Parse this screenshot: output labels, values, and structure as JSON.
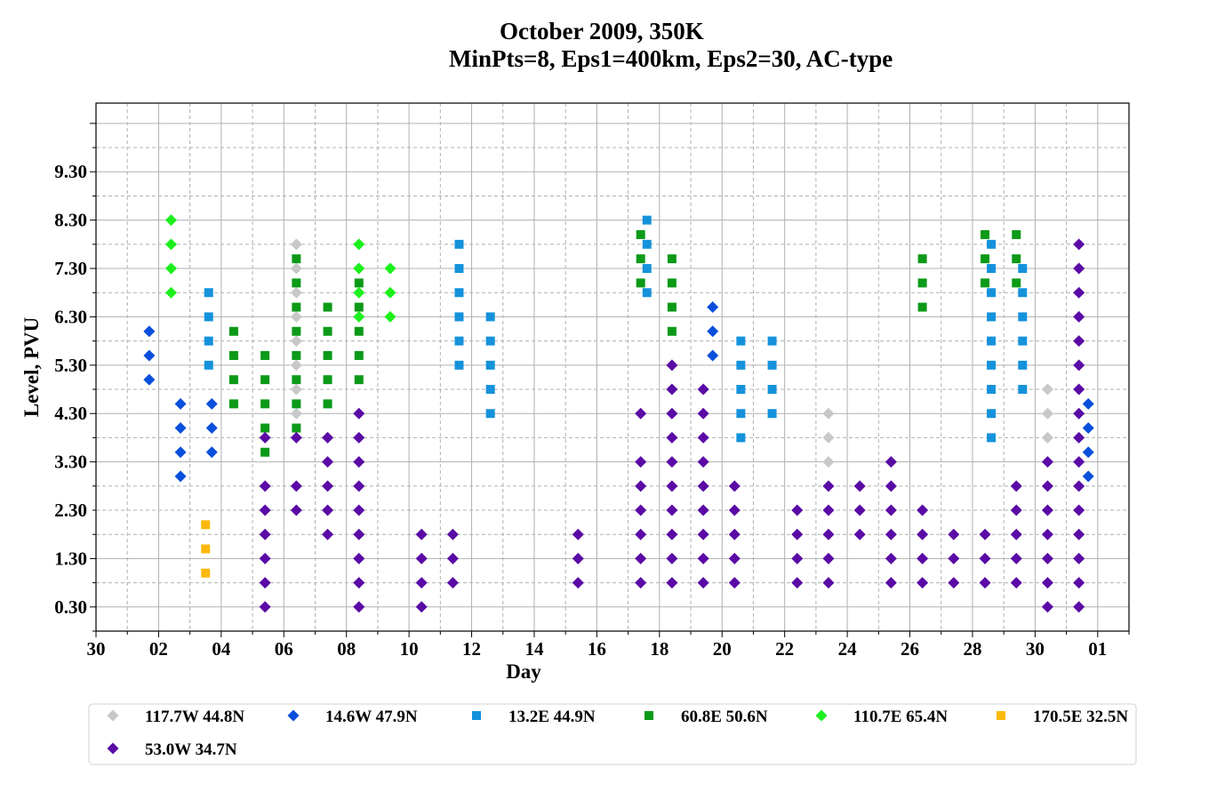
{
  "chart_data": {
    "type": "scatter",
    "title": "October 2009, 350K",
    "subtitle": "MinPts=8, Eps1=400km, Eps2=30, AC-type",
    "xlabel": "Day",
    "ylabel": "Level, PVU",
    "xlim_days_from_sep30": [
      0,
      33
    ],
    "ylim": [
      -0.2,
      10.72
    ],
    "x_ticks": [
      "30",
      "02",
      "04",
      "06",
      "08",
      "10",
      "12",
      "14",
      "16",
      "18",
      "20",
      "22",
      "24",
      "26",
      "28",
      "30",
      "01"
    ],
    "y_ticks": [
      "0.30",
      "1.30",
      "2.30",
      "3.30",
      "4.30",
      "5.30",
      "6.30",
      "7.30",
      "8.30",
      "9.30"
    ],
    "grid": true,
    "legend_position": "bottom",
    "series": [
      {
        "name": "117.7W 44.8N",
        "marker": "diamond",
        "color": "#c8c8c8",
        "points": [
          [
            6.4,
            7.8
          ],
          [
            6.4,
            7.3
          ],
          [
            6.4,
            6.8
          ],
          [
            6.4,
            6.3
          ],
          [
            6.4,
            5.8
          ],
          [
            6.4,
            5.3
          ],
          [
            6.4,
            4.8
          ],
          [
            6.4,
            4.3
          ],
          [
            23.4,
            4.3
          ],
          [
            23.4,
            3.8
          ],
          [
            23.4,
            3.3
          ],
          [
            30.4,
            4.8
          ],
          [
            30.4,
            4.3
          ],
          [
            30.4,
            3.8
          ]
        ]
      },
      {
        "name": "14.6W 47.9N",
        "marker": "diamond",
        "color": "#0a4fdc",
        "points": [
          [
            1.7,
            6.0
          ],
          [
            1.7,
            5.5
          ],
          [
            1.7,
            5.0
          ],
          [
            2.7,
            4.5
          ],
          [
            2.7,
            4.0
          ],
          [
            2.7,
            3.5
          ],
          [
            2.7,
            3.0
          ],
          [
            3.7,
            4.5
          ],
          [
            3.7,
            4.0
          ],
          [
            3.7,
            3.5
          ],
          [
            19.7,
            6.5
          ],
          [
            19.7,
            6.0
          ],
          [
            19.7,
            5.5
          ],
          [
            31.7,
            4.5
          ],
          [
            31.7,
            4.0
          ],
          [
            31.7,
            3.5
          ],
          [
            31.7,
            3.0
          ]
        ]
      },
      {
        "name": "13.2E 44.9N",
        "marker": "square",
        "color": "#1592dc",
        "points": [
          [
            3.6,
            6.8
          ],
          [
            3.6,
            6.3
          ],
          [
            3.6,
            5.8
          ],
          [
            3.6,
            5.3
          ],
          [
            11.6,
            7.8
          ],
          [
            11.6,
            7.3
          ],
          [
            11.6,
            6.8
          ],
          [
            11.6,
            6.3
          ],
          [
            11.6,
            5.8
          ],
          [
            11.6,
            5.3
          ],
          [
            12.6,
            6.3
          ],
          [
            12.6,
            5.8
          ],
          [
            12.6,
            5.3
          ],
          [
            12.6,
            4.8
          ],
          [
            12.6,
            4.3
          ],
          [
            17.6,
            8.3
          ],
          [
            17.6,
            7.8
          ],
          [
            17.6,
            7.3
          ],
          [
            17.6,
            6.8
          ],
          [
            20.6,
            5.8
          ],
          [
            20.6,
            5.3
          ],
          [
            20.6,
            4.8
          ],
          [
            20.6,
            4.3
          ],
          [
            20.6,
            3.8
          ],
          [
            21.6,
            5.8
          ],
          [
            21.6,
            5.3
          ],
          [
            21.6,
            4.8
          ],
          [
            21.6,
            4.3
          ],
          [
            28.6,
            7.8
          ],
          [
            28.6,
            7.3
          ],
          [
            28.6,
            6.8
          ],
          [
            28.6,
            6.3
          ],
          [
            28.6,
            5.8
          ],
          [
            28.6,
            5.3
          ],
          [
            28.6,
            4.8
          ],
          [
            28.6,
            4.3
          ],
          [
            28.6,
            3.8
          ],
          [
            29.6,
            7.3
          ],
          [
            29.6,
            6.8
          ],
          [
            29.6,
            6.3
          ],
          [
            29.6,
            5.8
          ],
          [
            29.6,
            5.3
          ],
          [
            29.6,
            4.8
          ]
        ]
      },
      {
        "name": "60.8E 50.6N",
        "marker": "square",
        "color": "#0c9a18",
        "points": [
          [
            4.4,
            6.0
          ],
          [
            4.4,
            5.5
          ],
          [
            4.4,
            5.0
          ],
          [
            4.4,
            4.5
          ],
          [
            5.4,
            5.5
          ],
          [
            5.4,
            5.0
          ],
          [
            5.4,
            4.5
          ],
          [
            5.4,
            4.0
          ],
          [
            5.4,
            3.5
          ],
          [
            6.4,
            7.5
          ],
          [
            6.4,
            7.0
          ],
          [
            6.4,
            6.5
          ],
          [
            6.4,
            6.0
          ],
          [
            6.4,
            5.5
          ],
          [
            6.4,
            5.0
          ],
          [
            6.4,
            4.5
          ],
          [
            6.4,
            4.0
          ],
          [
            7.4,
            6.5
          ],
          [
            7.4,
            6.0
          ],
          [
            7.4,
            5.5
          ],
          [
            7.4,
            5.0
          ],
          [
            7.4,
            4.5
          ],
          [
            8.4,
            7.0
          ],
          [
            8.4,
            6.5
          ],
          [
            8.4,
            6.0
          ],
          [
            8.4,
            5.5
          ],
          [
            8.4,
            5.0
          ],
          [
            17.4,
            8.0
          ],
          [
            17.4,
            7.5
          ],
          [
            17.4,
            7.0
          ],
          [
            18.4,
            7.5
          ],
          [
            18.4,
            7.0
          ],
          [
            18.4,
            6.5
          ],
          [
            18.4,
            6.0
          ],
          [
            26.4,
            7.5
          ],
          [
            26.4,
            7.0
          ],
          [
            26.4,
            6.5
          ],
          [
            28.4,
            8.0
          ],
          [
            28.4,
            7.5
          ],
          [
            28.4,
            7.0
          ],
          [
            29.4,
            8.0
          ],
          [
            29.4,
            7.5
          ],
          [
            29.4,
            7.0
          ]
        ]
      },
      {
        "name": "110.7E 65.4N",
        "marker": "diamond",
        "color": "#1cf01c",
        "points": [
          [
            2.4,
            8.3
          ],
          [
            2.4,
            7.8
          ],
          [
            2.4,
            7.3
          ],
          [
            2.4,
            6.8
          ],
          [
            8.4,
            7.8
          ],
          [
            8.4,
            7.3
          ],
          [
            8.4,
            6.8
          ],
          [
            8.4,
            6.3
          ],
          [
            9.4,
            7.3
          ],
          [
            9.4,
            6.8
          ],
          [
            9.4,
            6.3
          ]
        ]
      },
      {
        "name": "170.5E 32.5N",
        "marker": "square",
        "color": "#fcb90c",
        "points": [
          [
            3.5,
            2.0
          ],
          [
            3.5,
            1.5
          ],
          [
            3.5,
            1.0
          ]
        ]
      },
      {
        "name": "53.0W 34.7N",
        "marker": "diamond",
        "color": "#5a0aa5",
        "points": [
          [
            5.4,
            3.8
          ],
          [
            5.4,
            2.8
          ],
          [
            5.4,
            2.3
          ],
          [
            5.4,
            1.8
          ],
          [
            5.4,
            1.3
          ],
          [
            5.4,
            0.8
          ],
          [
            5.4,
            0.3
          ],
          [
            6.4,
            3.8
          ],
          [
            6.4,
            2.8
          ],
          [
            6.4,
            2.3
          ],
          [
            7.4,
            3.8
          ],
          [
            7.4,
            3.3
          ],
          [
            7.4,
            2.8
          ],
          [
            7.4,
            2.3
          ],
          [
            7.4,
            1.8
          ],
          [
            8.4,
            4.3
          ],
          [
            8.4,
            3.8
          ],
          [
            8.4,
            3.3
          ],
          [
            8.4,
            2.8
          ],
          [
            8.4,
            2.3
          ],
          [
            8.4,
            1.8
          ],
          [
            8.4,
            1.3
          ],
          [
            8.4,
            0.8
          ],
          [
            8.4,
            0.3
          ],
          [
            10.4,
            1.8
          ],
          [
            10.4,
            1.3
          ],
          [
            10.4,
            0.8
          ],
          [
            10.4,
            0.3
          ],
          [
            11.4,
            1.8
          ],
          [
            11.4,
            1.3
          ],
          [
            11.4,
            0.8
          ],
          [
            15.4,
            1.8
          ],
          [
            15.4,
            1.3
          ],
          [
            15.4,
            0.8
          ],
          [
            17.4,
            4.3
          ],
          [
            17.4,
            3.3
          ],
          [
            17.4,
            2.8
          ],
          [
            17.4,
            2.3
          ],
          [
            17.4,
            1.8
          ],
          [
            17.4,
            1.3
          ],
          [
            17.4,
            0.8
          ],
          [
            18.4,
            5.3
          ],
          [
            18.4,
            4.8
          ],
          [
            18.4,
            4.3
          ],
          [
            18.4,
            3.8
          ],
          [
            18.4,
            3.3
          ],
          [
            18.4,
            2.8
          ],
          [
            18.4,
            2.3
          ],
          [
            18.4,
            1.8
          ],
          [
            18.4,
            1.3
          ],
          [
            18.4,
            0.8
          ],
          [
            19.4,
            4.8
          ],
          [
            19.4,
            4.3
          ],
          [
            19.4,
            3.8
          ],
          [
            19.4,
            3.3
          ],
          [
            19.4,
            2.8
          ],
          [
            19.4,
            2.3
          ],
          [
            19.4,
            1.8
          ],
          [
            19.4,
            1.3
          ],
          [
            19.4,
            0.8
          ],
          [
            20.4,
            2.8
          ],
          [
            20.4,
            2.3
          ],
          [
            20.4,
            1.8
          ],
          [
            20.4,
            1.3
          ],
          [
            20.4,
            0.8
          ],
          [
            22.4,
            2.3
          ],
          [
            22.4,
            1.8
          ],
          [
            22.4,
            1.3
          ],
          [
            22.4,
            0.8
          ],
          [
            23.4,
            2.8
          ],
          [
            23.4,
            2.3
          ],
          [
            23.4,
            1.8
          ],
          [
            23.4,
            1.3
          ],
          [
            23.4,
            0.8
          ],
          [
            24.4,
            2.8
          ],
          [
            24.4,
            2.3
          ],
          [
            24.4,
            1.8
          ],
          [
            25.4,
            3.3
          ],
          [
            25.4,
            2.8
          ],
          [
            25.4,
            2.3
          ],
          [
            25.4,
            1.8
          ],
          [
            25.4,
            1.3
          ],
          [
            25.4,
            0.8
          ],
          [
            26.4,
            2.3
          ],
          [
            26.4,
            1.8
          ],
          [
            26.4,
            1.3
          ],
          [
            26.4,
            0.8
          ],
          [
            27.4,
            1.8
          ],
          [
            27.4,
            1.3
          ],
          [
            27.4,
            0.8
          ],
          [
            28.4,
            1.8
          ],
          [
            28.4,
            1.3
          ],
          [
            28.4,
            0.8
          ],
          [
            29.4,
            2.8
          ],
          [
            29.4,
            2.3
          ],
          [
            29.4,
            1.8
          ],
          [
            29.4,
            1.3
          ],
          [
            29.4,
            0.8
          ],
          [
            30.4,
            3.3
          ],
          [
            30.4,
            2.8
          ],
          [
            30.4,
            2.3
          ],
          [
            30.4,
            1.8
          ],
          [
            30.4,
            1.3
          ],
          [
            30.4,
            0.8
          ],
          [
            30.4,
            0.3
          ],
          [
            31.4,
            7.8
          ],
          [
            31.4,
            7.3
          ],
          [
            31.4,
            6.8
          ],
          [
            31.4,
            6.3
          ],
          [
            31.4,
            5.8
          ],
          [
            31.4,
            5.3
          ],
          [
            31.4,
            4.8
          ],
          [
            31.4,
            4.3
          ],
          [
            31.4,
            3.8
          ],
          [
            31.4,
            3.3
          ],
          [
            31.4,
            2.8
          ],
          [
            31.4,
            2.3
          ],
          [
            31.4,
            1.8
          ],
          [
            31.4,
            1.3
          ],
          [
            31.4,
            0.8
          ],
          [
            31.4,
            0.3
          ]
        ]
      }
    ]
  }
}
